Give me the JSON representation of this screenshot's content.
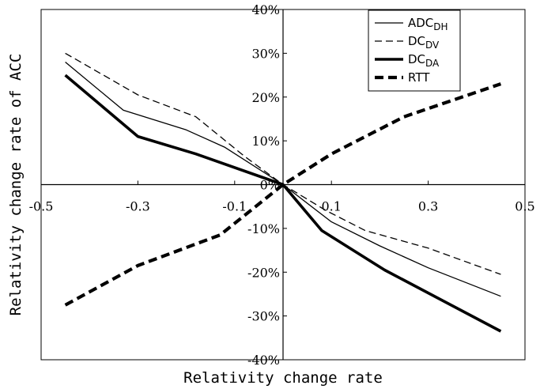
{
  "chart_data": {
    "type": "line",
    "title": "",
    "xlabel": "Relativity change rate",
    "ylabel": "Relativity change rate of ACC",
    "xlim": [
      -0.5,
      0.5
    ],
    "ylim": [
      -40,
      40
    ],
    "x_ticks": [
      "-0.5",
      "-0.3",
      "-0.1",
      "0.1",
      "0.3",
      "0.5"
    ],
    "y_ticks": [
      "40%",
      "30%",
      "20%",
      "10%",
      "0%",
      "-10%",
      "-20%",
      "-30%",
      "-40%"
    ],
    "x_tick_values": [
      -0.5,
      -0.3,
      -0.1,
      0.1,
      0.3,
      0.5
    ],
    "y_tick_values": [
      40,
      30,
      20,
      10,
      0,
      -10,
      -20,
      -30,
      -40
    ],
    "grid": false,
    "legend_position": "top-right",
    "series": [
      {
        "name": "ADC",
        "subscript": "DH",
        "color": "#000000",
        "style": "thin-solid",
        "x": [
          -0.45,
          -0.33,
          -0.2,
          -0.12,
          0.0,
          0.1,
          0.2,
          0.3,
          0.45
        ],
        "y": [
          28,
          17,
          12.5,
          8.5,
          0,
          -8.5,
          -14,
          -19,
          -25.5
        ]
      },
      {
        "name": "DC",
        "subscript": "DV",
        "color": "#000000",
        "style": "thin-dashed",
        "x": [
          -0.45,
          -0.3,
          -0.18,
          -0.08,
          0.0,
          0.09,
          0.17,
          0.3,
          0.45
        ],
        "y": [
          30,
          20.5,
          15.5,
          6.5,
          0,
          -6,
          -10.5,
          -14.5,
          -20.5
        ]
      },
      {
        "name": "DC",
        "subscript": "DA",
        "color": "#000000",
        "style": "thick-solid",
        "x": [
          -0.45,
          -0.3,
          -0.18,
          0.0,
          0.08,
          0.21,
          0.45
        ],
        "y": [
          25,
          11,
          7,
          0,
          -10.5,
          -19.5,
          -33.5
        ]
      },
      {
        "name": "RTT",
        "color": "#000000",
        "style": "thick-dashed",
        "x": [
          -0.45,
          -0.3,
          -0.13,
          0.0,
          0.1,
          0.25,
          0.45
        ],
        "y": [
          -27.5,
          -18.5,
          -11.5,
          0,
          7,
          15.5,
          23
        ]
      }
    ]
  }
}
